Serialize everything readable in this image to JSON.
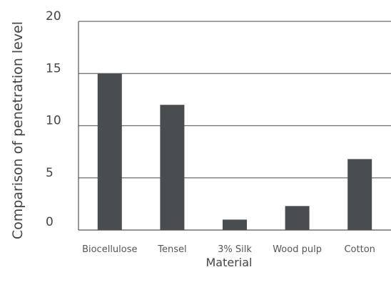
{
  "chart_data": {
    "type": "bar",
    "title": "",
    "xlabel": "Material",
    "ylabel": "Comparison of penetration level",
    "categories": [
      "Biocellulose",
      "Tensel",
      "3% Silk",
      "Wood pulp",
      "Cotton"
    ],
    "values": [
      15,
      12,
      1,
      2.3,
      6.8
    ],
    "ylim": [
      0,
      20
    ],
    "yticks": [
      "0",
      "5",
      "10",
      "15",
      "20"
    ],
    "grid": true,
    "colors": {
      "bar": "#4a4d4f",
      "grid": "#6b6b6b",
      "axis": "#555555"
    }
  }
}
